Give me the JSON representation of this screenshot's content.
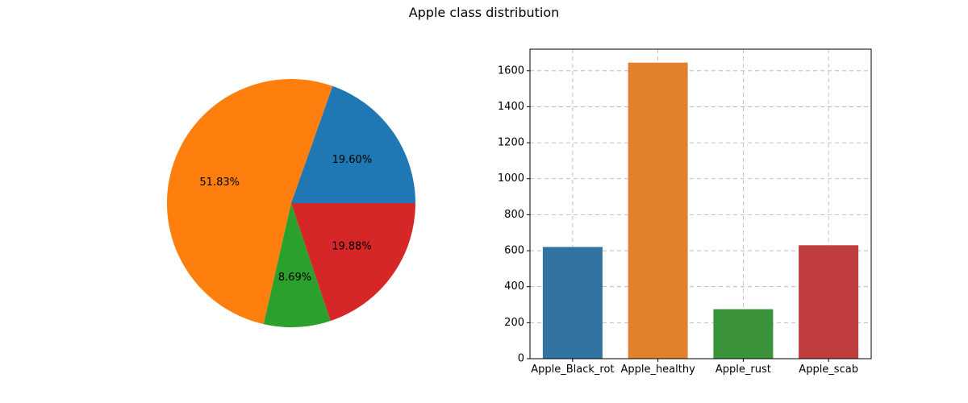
{
  "figure": {
    "title": "Apple class distribution"
  },
  "chart_data": [
    {
      "type": "pie",
      "labels": [
        "Apple_Black_rot",
        "Apple_healthy",
        "Apple_rust",
        "Apple_scab"
      ],
      "values": [
        19.6,
        51.83,
        8.69,
        19.88
      ],
      "value_labels": [
        "19.60%",
        "51.83%",
        "8.69%",
        "19.88%"
      ],
      "colors": [
        "#1f77b4",
        "#ff7f0e",
        "#2ca02c",
        "#d62728"
      ]
    },
    {
      "type": "bar",
      "categories": [
        "Apple_Black_rot",
        "Apple_healthy",
        "Apple_rust",
        "Apple_scab"
      ],
      "values": [
        621,
        1645,
        275,
        630
      ],
      "colors": [
        "#3274a1",
        "#e1812c",
        "#3a923a",
        "#c03d3e"
      ],
      "ylim": [
        0,
        1720
      ],
      "yticks": [
        0,
        200,
        400,
        600,
        800,
        1000,
        1200,
        1400,
        1600
      ],
      "grid": true
    }
  ]
}
